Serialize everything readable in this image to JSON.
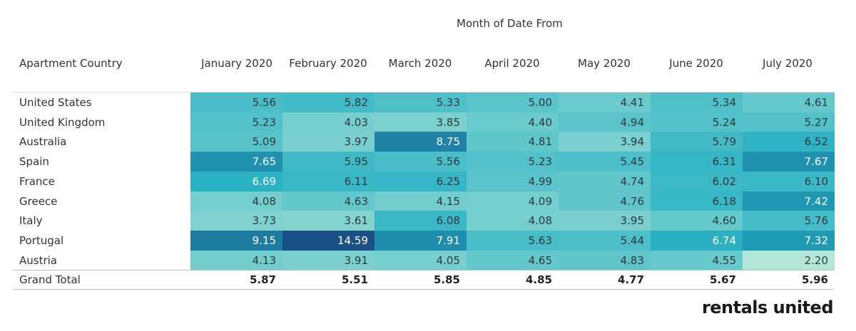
{
  "chart_data": {
    "type": "heatmap",
    "column_header_title": "Month of Date From",
    "row_header_title": "Apartment Country",
    "columns": [
      "January 2020",
      "February 2020",
      "March 2020",
      "April 2020",
      "May 2020",
      "June 2020",
      "July 2020"
    ],
    "rows": [
      "United States",
      "United Kingdom",
      "Australia",
      "Spain",
      "France",
      "Greece",
      "Italy",
      "Portugal",
      "Austria"
    ],
    "values": [
      [
        "5.56",
        "5.82",
        "5.33",
        "5.00",
        "4.41",
        "5.34",
        "4.61"
      ],
      [
        "5.23",
        "4.03",
        "3.85",
        "4.40",
        "4.94",
        "5.24",
        "5.27"
      ],
      [
        "5.09",
        "3.97",
        "8.75",
        "4.81",
        "3.94",
        "5.79",
        "6.52"
      ],
      [
        "7.65",
        "5.95",
        "5.56",
        "5.23",
        "5.45",
        "6.31",
        "7.67"
      ],
      [
        "6.69",
        "6.11",
        "6.25",
        "4.99",
        "4.74",
        "6.02",
        "6.10"
      ],
      [
        "4.08",
        "4.63",
        "4.15",
        "4.09",
        "4.76",
        "6.18",
        "7.42"
      ],
      [
        "3.73",
        "3.61",
        "6.08",
        "4.08",
        "3.95",
        "4.60",
        "5.76"
      ],
      [
        "9.15",
        "14.59",
        "7.91",
        "5.63",
        "5.44",
        "6.74",
        "7.32"
      ],
      [
        "4.13",
        "3.91",
        "4.05",
        "4.65",
        "4.83",
        "4.55",
        "2.20"
      ]
    ],
    "total_label": "Grand Total",
    "totals": [
      "5.87",
      "5.51",
      "5.85",
      "4.85",
      "4.77",
      "5.67",
      "5.96"
    ],
    "color_scale": {
      "low": "#b3e6d6",
      "mid": "#22aec2",
      "high": "#1a5086"
    }
  },
  "brand": {
    "logo_text": "rentals united"
  }
}
